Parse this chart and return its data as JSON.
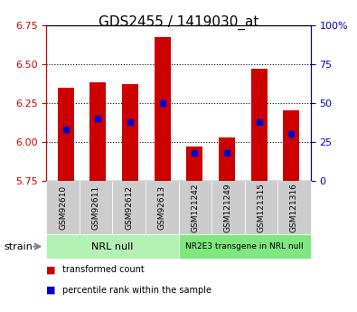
{
  "title": "GDS2455 / 1419030_at",
  "samples": [
    "GSM92610",
    "GSM92611",
    "GSM92612",
    "GSM92613",
    "GSM121242",
    "GSM121249",
    "GSM121315",
    "GSM121316"
  ],
  "bar_values": [
    6.35,
    6.38,
    6.37,
    6.67,
    5.97,
    6.03,
    6.47,
    6.2
  ],
  "percentile_values": [
    33,
    40,
    38,
    50,
    18,
    18,
    38,
    30
  ],
  "y_min": 5.75,
  "y_max": 6.75,
  "y_ticks": [
    5.75,
    6.0,
    6.25,
    6.5,
    6.75
  ],
  "right_y_ticks": [
    0,
    25,
    50,
    75,
    100
  ],
  "group1_label": "NRL null",
  "group2_label": "NR2E3 transgene in NRL null",
  "group1_color": "#b3f0b3",
  "group2_color": "#80e680",
  "bar_color": "#cc0000",
  "dot_color": "#0000cc",
  "xlabel": "strain",
  "left_color": "#cc0000",
  "right_color": "#0000cc",
  "tick_label_bg": "#cccccc"
}
